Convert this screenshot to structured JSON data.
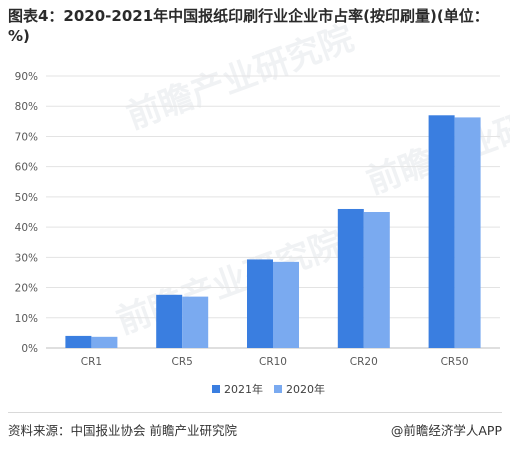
{
  "title": "图表4：2020-2021年中国报纸印刷行业企业市占率(按印刷量)(单位：%)",
  "source": "资料来源：中国报业协会 前瞻产业研究院",
  "brand": "@前瞻经济学人APP",
  "watermark": "前瞻产业研究院",
  "chart_data": {
    "type": "bar",
    "categories": [
      "CR1",
      "CR5",
      "CR10",
      "CR20",
      "CR50"
    ],
    "series": [
      {
        "name": "2021年",
        "color": "#3a7ee0",
        "values": [
          4.0,
          17.6,
          29.3,
          46.0,
          77.0
        ]
      },
      {
        "name": "2020年",
        "color": "#7aaaf0",
        "values": [
          3.7,
          17.0,
          28.5,
          45.0,
          76.3
        ]
      }
    ],
    "yticks": [
      "0%",
      "10%",
      "20%",
      "30%",
      "40%",
      "50%",
      "60%",
      "70%",
      "80%",
      "90%"
    ],
    "ylim": [
      0,
      90
    ],
    "legend": "bottom-center",
    "grid": true
  }
}
